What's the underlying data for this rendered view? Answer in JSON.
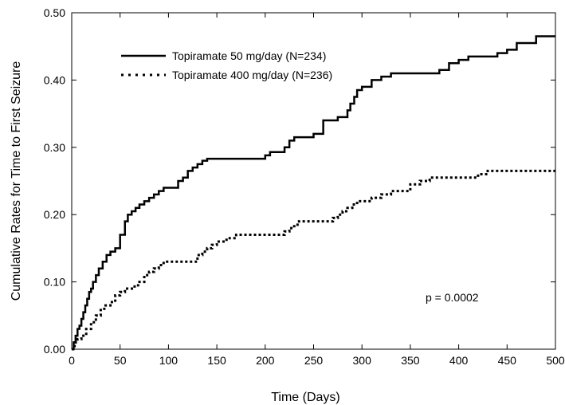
{
  "chart_data": {
    "type": "line",
    "step": true,
    "xlabel": "Time (Days)",
    "ylabel": "Cumulative Rates for Time to First Seizure",
    "xlim": [
      0,
      500
    ],
    "ylim": [
      0,
      0.5
    ],
    "x_ticks": [
      0,
      50,
      100,
      150,
      200,
      250,
      300,
      350,
      400,
      450,
      500
    ],
    "y_ticks": [
      0.0,
      0.1,
      0.2,
      0.3,
      0.4,
      0.5
    ],
    "x_tick_labels": [
      "0",
      "50",
      "100",
      "150",
      "200",
      "250",
      "300",
      "350",
      "400",
      "450",
      "500"
    ],
    "y_tick_labels": [
      "0.00",
      "0.10",
      "0.20",
      "0.30",
      "0.40",
      "0.50"
    ],
    "grid": false,
    "legend_position": "top-left",
    "annotation": "p = 0.0002",
    "series": [
      {
        "name": "Topiramate 50 mg/day (N=234)",
        "style": "solid",
        "color": "#000000",
        "x": [
          0,
          2,
          4,
          6,
          8,
          10,
          12,
          14,
          16,
          18,
          20,
          22,
          25,
          28,
          32,
          36,
          40,
          45,
          50,
          55,
          58,
          62,
          66,
          70,
          75,
          80,
          85,
          90,
          95,
          100,
          110,
          115,
          120,
          125,
          130,
          135,
          140,
          145,
          150,
          160,
          170,
          180,
          190,
          200,
          205,
          210,
          220,
          225,
          230,
          240,
          250,
          260,
          270,
          275,
          280,
          285,
          288,
          292,
          295,
          300,
          310,
          320,
          330,
          340,
          350,
          360,
          380,
          390,
          400,
          410,
          420,
          440,
          450,
          460,
          470,
          480,
          490,
          500
        ],
        "y": [
          0.0,
          0.01,
          0.02,
          0.03,
          0.035,
          0.045,
          0.055,
          0.065,
          0.075,
          0.085,
          0.09,
          0.1,
          0.11,
          0.12,
          0.13,
          0.14,
          0.145,
          0.15,
          0.17,
          0.19,
          0.2,
          0.205,
          0.21,
          0.215,
          0.22,
          0.225,
          0.23,
          0.235,
          0.24,
          0.24,
          0.25,
          0.255,
          0.265,
          0.27,
          0.275,
          0.28,
          0.283,
          0.283,
          0.283,
          0.283,
          0.283,
          0.283,
          0.283,
          0.288,
          0.293,
          0.293,
          0.3,
          0.31,
          0.315,
          0.315,
          0.32,
          0.34,
          0.34,
          0.345,
          0.345,
          0.355,
          0.365,
          0.375,
          0.385,
          0.39,
          0.4,
          0.405,
          0.41,
          0.41,
          0.41,
          0.41,
          0.415,
          0.425,
          0.43,
          0.435,
          0.435,
          0.44,
          0.445,
          0.455,
          0.455,
          0.465,
          0.465,
          0.465
        ]
      },
      {
        "name": "Topiramate 400 mg/day (N=236)",
        "style": "dotted",
        "color": "#000000",
        "x": [
          0,
          3,
          6,
          10,
          15,
          20,
          25,
          30,
          35,
          40,
          45,
          50,
          55,
          60,
          65,
          70,
          75,
          80,
          85,
          90,
          95,
          100,
          105,
          115,
          125,
          130,
          135,
          140,
          145,
          150,
          160,
          170,
          175,
          185,
          200,
          210,
          220,
          225,
          230,
          235,
          240,
          250,
          260,
          270,
          275,
          280,
          285,
          290,
          295,
          300,
          310,
          320,
          330,
          340,
          350,
          360,
          370,
          380,
          400,
          420,
          430,
          440,
          450,
          460,
          470,
          480,
          500
        ],
        "y": [
          0.0,
          0.01,
          0.015,
          0.02,
          0.03,
          0.04,
          0.05,
          0.06,
          0.065,
          0.07,
          0.08,
          0.085,
          0.09,
          0.09,
          0.095,
          0.1,
          0.11,
          0.115,
          0.12,
          0.125,
          0.13,
          0.13,
          0.13,
          0.13,
          0.13,
          0.14,
          0.145,
          0.15,
          0.155,
          0.16,
          0.165,
          0.17,
          0.17,
          0.17,
          0.17,
          0.17,
          0.175,
          0.18,
          0.185,
          0.19,
          0.19,
          0.19,
          0.19,
          0.195,
          0.2,
          0.205,
          0.21,
          0.215,
          0.22,
          0.22,
          0.225,
          0.23,
          0.235,
          0.235,
          0.245,
          0.25,
          0.255,
          0.255,
          0.255,
          0.26,
          0.265,
          0.265,
          0.265,
          0.265,
          0.265,
          0.265,
          0.265
        ]
      }
    ]
  }
}
